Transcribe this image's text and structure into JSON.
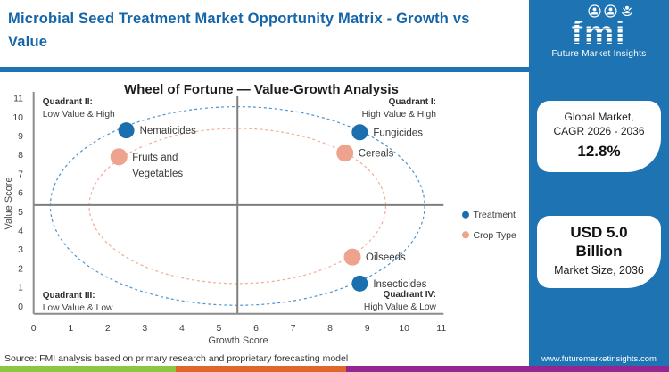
{
  "header": {
    "title": "Microbial Seed Treatment Market Opportunity Matrix - Growth vs Value"
  },
  "logo": {
    "brand": "fmi",
    "tagline": "Future Market Insights",
    "icons": [
      "person-in-circle-icon",
      "person-in-circle-icon",
      "person-arms-up-icon"
    ]
  },
  "sidebar": {
    "card_cagr": {
      "line1": "Global Market,",
      "line2": "CAGR 2026 - 2036",
      "value": "12.8%"
    },
    "card_size": {
      "value_line1": "USD 5.0",
      "value_line2": "Billion",
      "caption": "Market Size, 2036"
    },
    "website": "www.futuremarketinsights.com"
  },
  "footer": {
    "source": "Source: FMI analysis based on primary research and proprietary forecasting model"
  },
  "colors": {
    "brand_blue": "#1E73B2",
    "title_blue": "#1565A8",
    "treatment_blue": "#1C6FAE",
    "crop_salmon": "#EDA38D",
    "stripe_green": "#8DC63F",
    "stripe_orange": "#E2652B",
    "stripe_purple": "#93278F"
  },
  "chart_data": {
    "type": "scatter",
    "title": "Wheel of Fortune — Value-Growth Analysis",
    "xlabel": "Growth Score",
    "ylabel": "Value Score",
    "xlim": [
      0,
      11
    ],
    "ylim": [
      0,
      11
    ],
    "xticks": [
      0,
      1,
      2,
      3,
      4,
      5,
      6,
      7,
      8,
      9,
      10,
      11
    ],
    "yticks": [
      0,
      1,
      2,
      3,
      4,
      5,
      6,
      7,
      8,
      9,
      10,
      11
    ],
    "grid": false,
    "crosshair": {
      "x": 5.5,
      "y": 5.35
    },
    "quadrant_labels": [
      {
        "title": "Quadrant II:",
        "subtitle": "Low Value & High",
        "position": "top-left"
      },
      {
        "title": "Quadrant I:",
        "subtitle": "High Value & High",
        "position": "top-right"
      },
      {
        "title": "Quadrant III:",
        "subtitle": "Low Value & Low",
        "position": "bottom-left"
      },
      {
        "title": "Quadrant IV:",
        "subtitle": "High Value & Low",
        "position": "bottom-right"
      }
    ],
    "series": [
      {
        "name": "Treatment",
        "color": "#1C6FAE",
        "marker_radius": 9,
        "points": [
          {
            "label": "Nematicides",
            "x": 2.5,
            "y": 9.3
          },
          {
            "label": "Fungicides",
            "x": 8.8,
            "y": 9.2
          },
          {
            "label": "Insecticides",
            "x": 8.8,
            "y": 1.2
          }
        ]
      },
      {
        "name": "Crop Type",
        "color": "#EDA38D",
        "marker_radius": 9.5,
        "points": [
          {
            "label": "Fruits and Vegetables",
            "label_lines": [
              "Fruits and",
              "Vegetables"
            ],
            "x": 2.3,
            "y": 7.9
          },
          {
            "label": "Cereals",
            "x": 8.4,
            "y": 8.1
          },
          {
            "label": "Oilseeds",
            "x": 8.6,
            "y": 2.6
          }
        ]
      }
    ],
    "ellipses": [
      {
        "series": "Treatment",
        "cx": 5.5,
        "cy": 5.3,
        "rx": 5.05,
        "ry": 5.25,
        "color": "#4E94CE"
      },
      {
        "series": "Crop Type",
        "cx": 5.5,
        "cy": 5.3,
        "rx": 4.0,
        "ry": 4.1,
        "color": "#F0AC98"
      }
    ],
    "legend": {
      "position": "right",
      "entries": [
        "Treatment",
        "Crop Type"
      ]
    }
  }
}
